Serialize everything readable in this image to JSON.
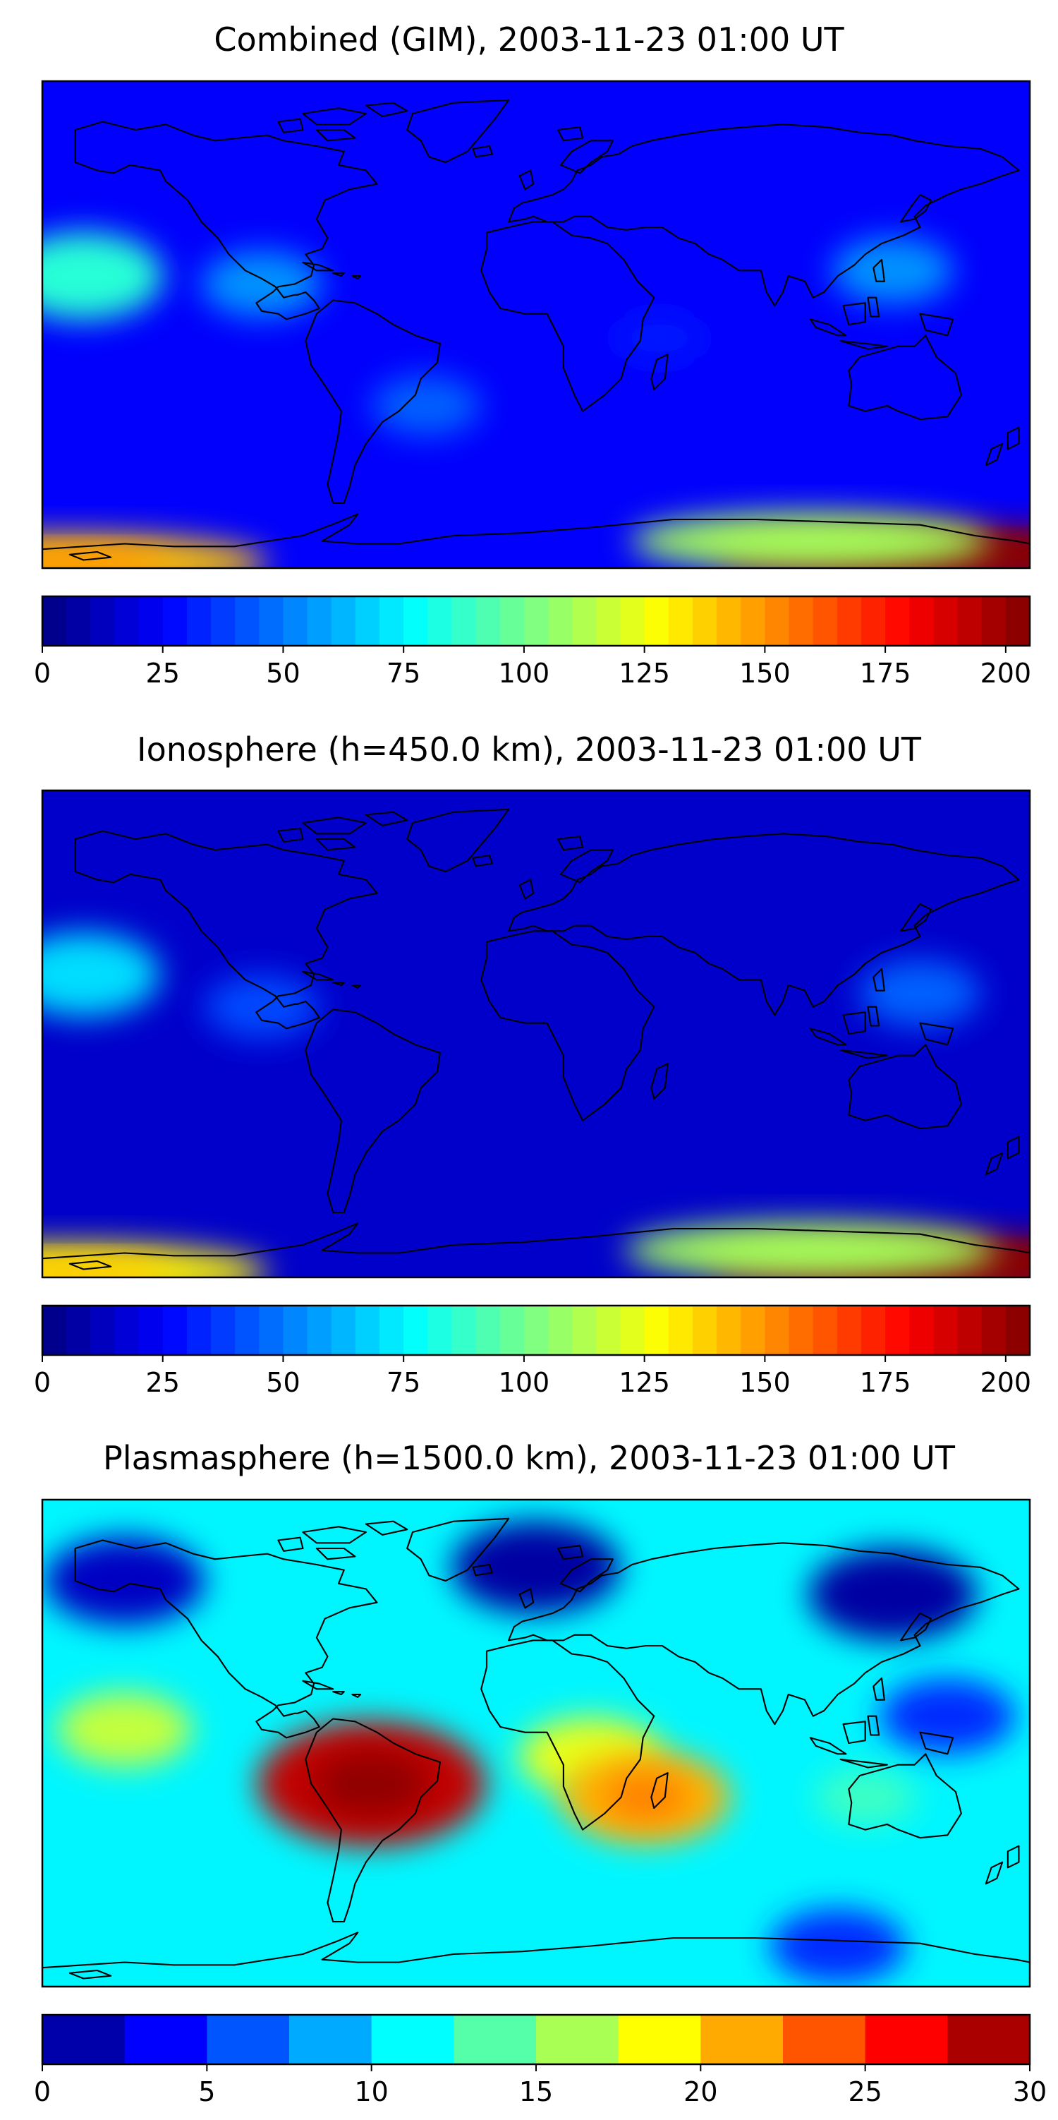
{
  "figure": {
    "panels": [
      {
        "id": "combined",
        "title": "Combined (GIM), 2003-11-23 01:00 UT",
        "colorbar": {
          "ticks": [
            "0",
            "25",
            "50",
            "75",
            "100",
            "125",
            "150",
            "175",
            "200"
          ],
          "tick_values": [
            0,
            25,
            50,
            75,
            100,
            125,
            150,
            175,
            200
          ],
          "min": 0,
          "max": 205,
          "levels": 41,
          "colormap": "jet"
        }
      },
      {
        "id": "ionosphere",
        "title": "Ionosphere  (h=450.0 km), 2003-11-23 01:00 UT",
        "colorbar": {
          "ticks": [
            "0",
            "25",
            "50",
            "75",
            "100",
            "125",
            "150",
            "175",
            "200"
          ],
          "tick_values": [
            0,
            25,
            50,
            75,
            100,
            125,
            150,
            175,
            200
          ],
          "min": 0,
          "max": 205,
          "levels": 41,
          "colormap": "jet"
        }
      },
      {
        "id": "plasmasphere",
        "title": "Plasmasphere (h=1500.0 km), 2003-11-23 01:00 UT",
        "colorbar": {
          "ticks": [
            "0",
            "5",
            "10",
            "15",
            "20",
            "25",
            "30"
          ],
          "tick_values": [
            0,
            5,
            10,
            15,
            20,
            25,
            30
          ],
          "min": 0,
          "max": 30,
          "levels": 12,
          "colormap": "jet"
        }
      }
    ]
  },
  "chart_data": [
    {
      "type": "heatmap",
      "title": "Combined (GIM), 2003-11-23 01:00 UT",
      "colormap": "jet",
      "colorbar_range": [
        0,
        205
      ],
      "colorbar_ticks": [
        0,
        25,
        50,
        75,
        100,
        125,
        150,
        175,
        200
      ],
      "map": "world coastlines, equirectangular",
      "background_level": 25,
      "features": [
        {
          "lon": -165,
          "lat": 18,
          "value": 85
        },
        {
          "lon": -100,
          "lat": 15,
          "value": 55
        },
        {
          "lon": 130,
          "lat": 20,
          "value": 55
        },
        {
          "lon": -40,
          "lat": -30,
          "value": 45
        },
        {
          "lon": 45,
          "lat": -5,
          "value": 30
        },
        {
          "lon": 150,
          "lat": -85,
          "value": 200
        },
        {
          "lon": 100,
          "lat": -80,
          "value": 110
        },
        {
          "lon": -170,
          "lat": -88,
          "value": 140
        }
      ]
    },
    {
      "type": "heatmap",
      "title": "Ionosphere  (h=450.0 km), 2003-11-23 01:00 UT",
      "colormap": "jet",
      "colorbar_range": [
        0,
        205
      ],
      "colorbar_ticks": [
        0,
        25,
        50,
        75,
        100,
        125,
        150,
        175,
        200
      ],
      "map": "world coastlines, equirectangular",
      "background_level": 15,
      "features": [
        {
          "lon": -165,
          "lat": 22,
          "value": 70
        },
        {
          "lon": -100,
          "lat": 10,
          "value": 40
        },
        {
          "lon": 140,
          "lat": 15,
          "value": 45
        },
        {
          "lon": 150,
          "lat": -85,
          "value": 200
        },
        {
          "lon": 100,
          "lat": -80,
          "value": 110
        },
        {
          "lon": -170,
          "lat": -88,
          "value": 130
        }
      ]
    },
    {
      "type": "heatmap",
      "title": "Plasmasphere (h=1500.0 km), 2003-11-23 01:00 UT",
      "colormap": "jet",
      "colorbar_range": [
        0,
        30
      ],
      "colorbar_ticks": [
        0,
        5,
        10,
        15,
        20,
        25,
        30
      ],
      "map": "world coastlines, equirectangular",
      "background_level": 11,
      "features": [
        {
          "lon": -60,
          "lat": -15,
          "value": 28
        },
        {
          "lon": -150,
          "lat": 5,
          "value": 17
        },
        {
          "lon": 20,
          "lat": -5,
          "value": 18
        },
        {
          "lon": 40,
          "lat": -20,
          "value": 21
        },
        {
          "lon": 0,
          "lat": 65,
          "value": 1
        },
        {
          "lon": 130,
          "lat": 55,
          "value": 1
        },
        {
          "lon": -150,
          "lat": 60,
          "value": 2
        },
        {
          "lon": 150,
          "lat": 10,
          "value": 5
        },
        {
          "lon": 110,
          "lat": -75,
          "value": 5
        },
        {
          "lon": 120,
          "lat": -20,
          "value": 13
        }
      ]
    }
  ]
}
